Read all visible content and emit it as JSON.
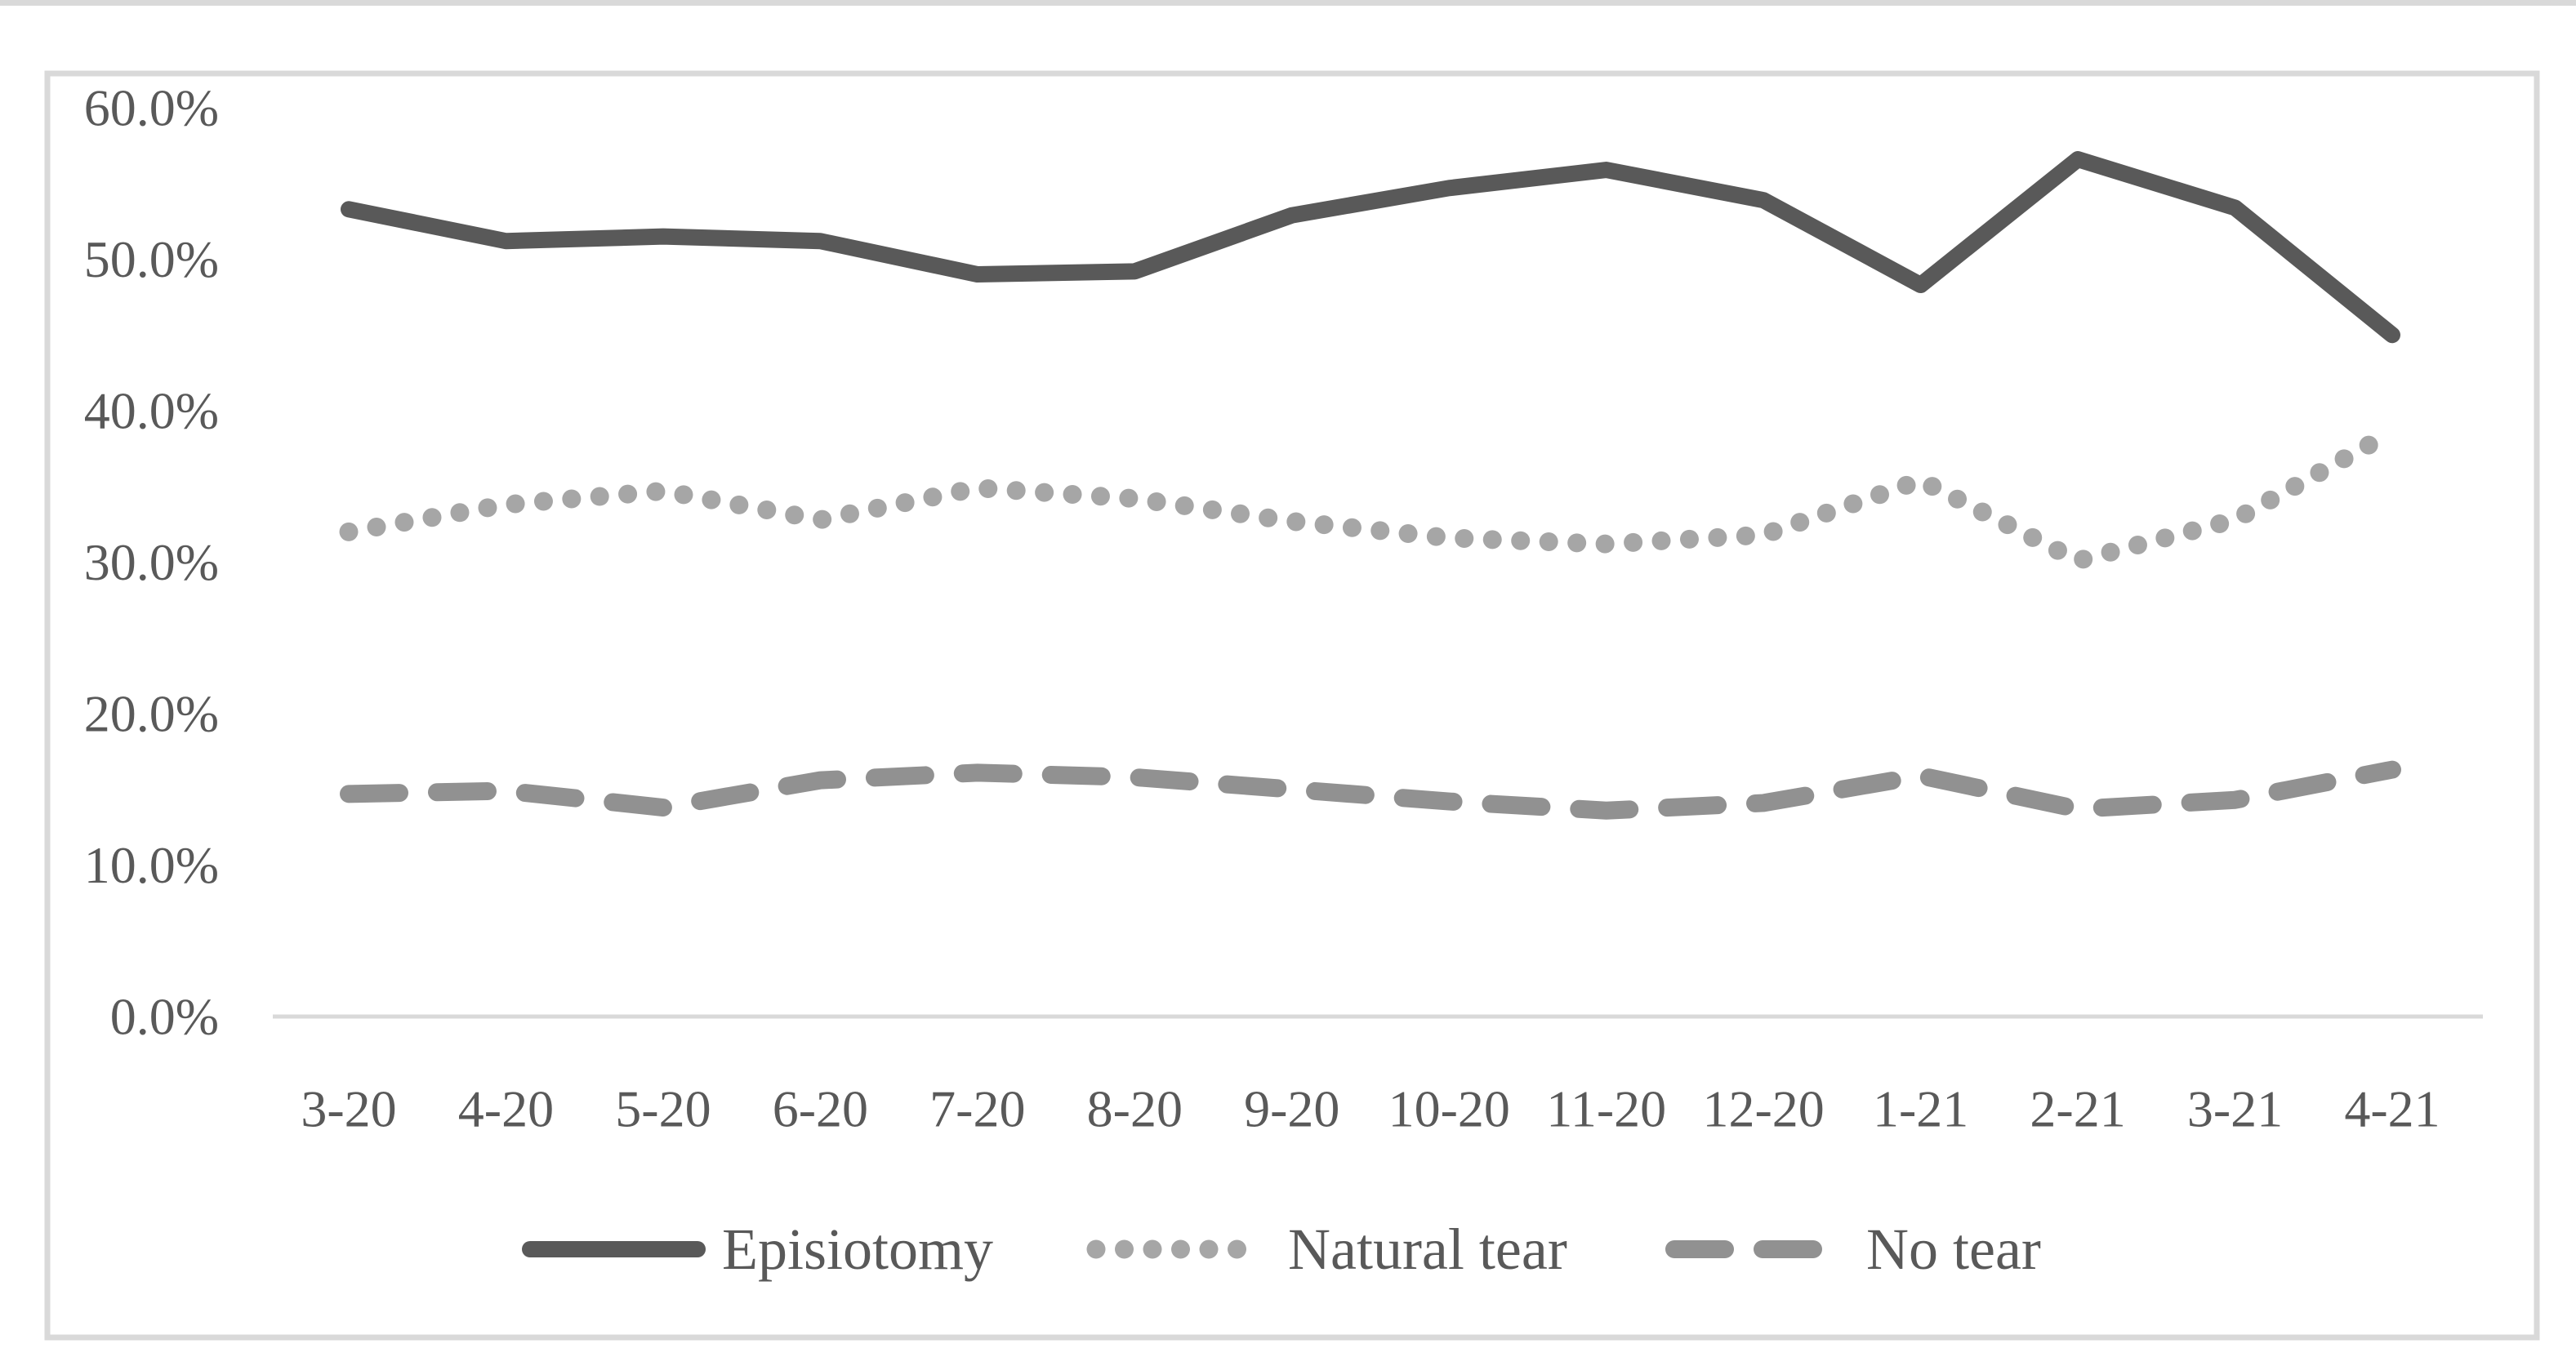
{
  "chart_data": {
    "type": "line",
    "title": "",
    "xlabel": "",
    "ylabel": "",
    "categories": [
      "3-20",
      "4-20",
      "5-20",
      "6-20",
      "7-20",
      "8-20",
      "9-20",
      "10-20",
      "11-20",
      "12-20",
      "1-21",
      "2-21",
      "3-21",
      "4-21"
    ],
    "series": [
      {
        "name": "Episiotomy",
        "style": "solid",
        "color": "#595959",
        "values": [
          53.3,
          51.2,
          51.5,
          51.2,
          49.0,
          49.2,
          52.9,
          54.7,
          55.9,
          53.9,
          48.3,
          56.6,
          53.4,
          45.0
        ]
      },
      {
        "name": "Natural tear",
        "style": "dotted",
        "color": "#a6a6a6",
        "values": [
          32.0,
          33.8,
          34.7,
          32.8,
          34.9,
          34.2,
          32.7,
          31.6,
          31.2,
          31.8,
          35.4,
          30.1,
          32.8,
          38.6
        ]
      },
      {
        "name": "No tear",
        "style": "dashed",
        "color": "#919191",
        "values": [
          14.7,
          14.9,
          13.8,
          15.6,
          16.1,
          15.8,
          15.0,
          14.2,
          13.6,
          14.1,
          15.9,
          13.7,
          14.3,
          16.3
        ]
      }
    ],
    "ylim": [
      0,
      60
    ],
    "ytick_step": 10,
    "ytick_labels": [
      "0.0%",
      "10.0%",
      "20.0%",
      "30.0%",
      "40.0%",
      "50.0%",
      "60.0%"
    ],
    "grid": false,
    "legend_position": "bottom",
    "unit": "percent"
  },
  "colors": {
    "text": "#595959",
    "axis_line": "#d9d9d9",
    "figure_border": "#d9d9d9",
    "background": "#ffffff"
  }
}
